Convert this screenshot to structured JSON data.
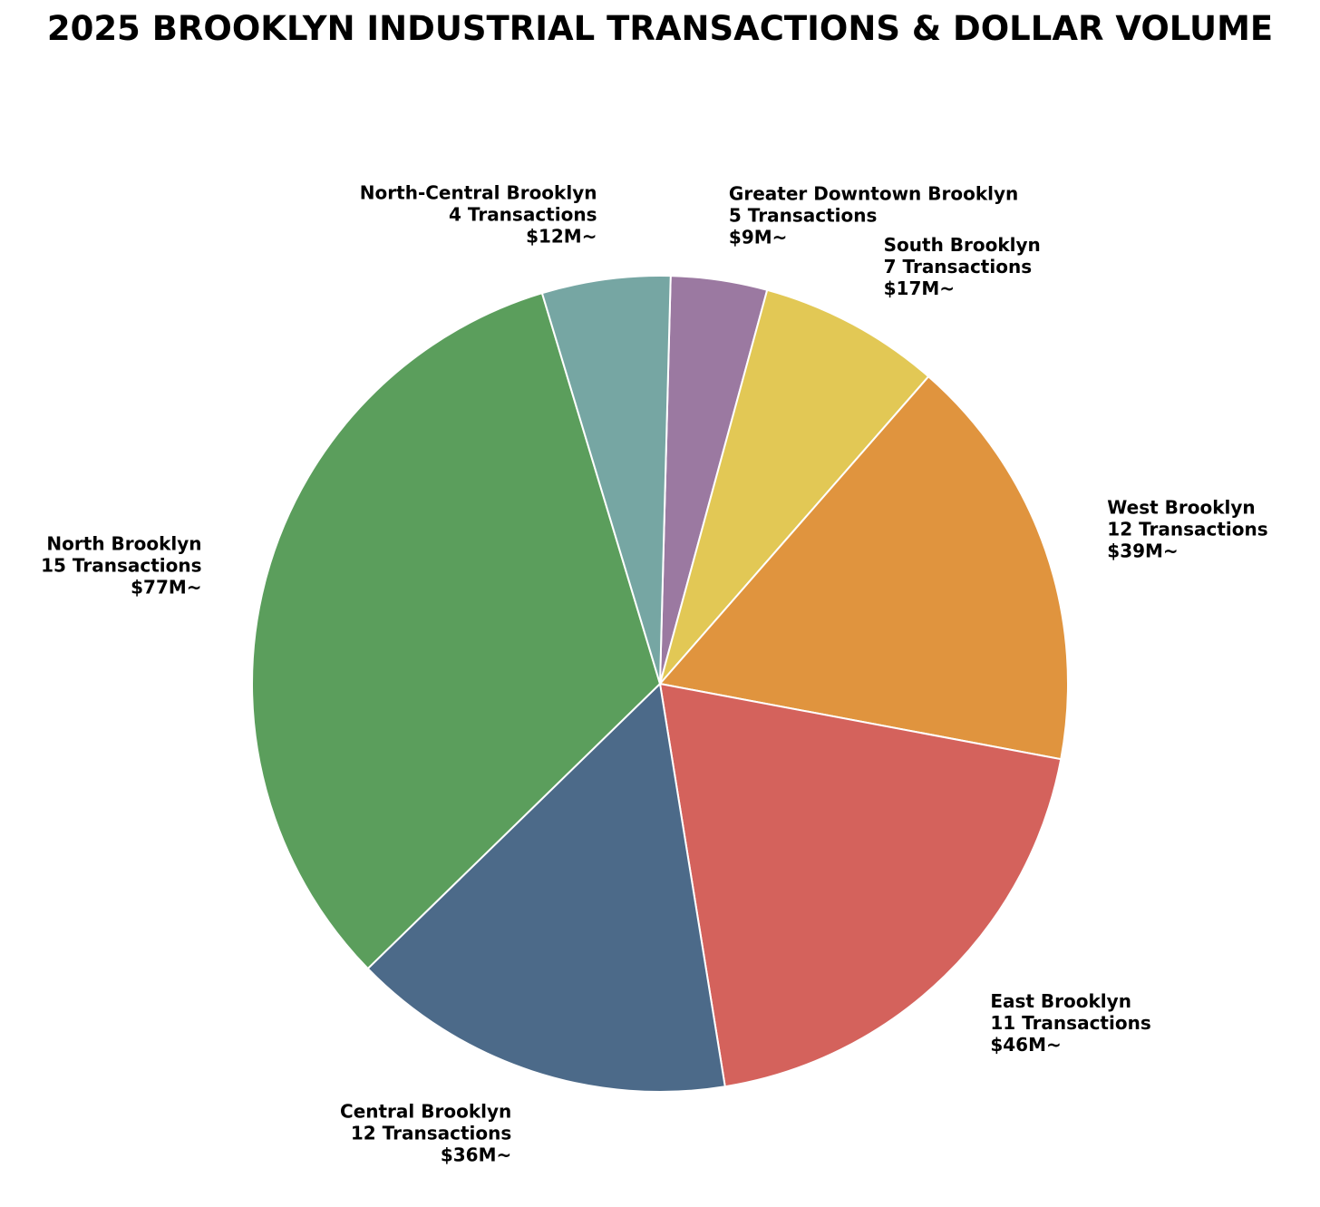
{
  "chart_data": {
    "type": "pie",
    "title": "2025 BROOKLYN INDUSTRIAL TRANSACTIONS & DOLLAR VOLUME",
    "slices": [
      {
        "region": "Greater Downtown Brooklyn",
        "transactions": "5 Transactions",
        "volume": "$9M~",
        "value": 9,
        "color": "#9b79a1"
      },
      {
        "region": "South Brooklyn",
        "transactions": "7 Transactions",
        "volume": "$17M~",
        "value": 17,
        "color": "#e2c855"
      },
      {
        "region": "West Brooklyn",
        "transactions": "12 Transactions",
        "volume": "$39M~",
        "value": 39,
        "color": "#e0943e"
      },
      {
        "region": "East Brooklyn",
        "transactions": "11 Transactions",
        "volume": "$46M~",
        "value": 46,
        "color": "#d4625c"
      },
      {
        "region": "Central Brooklyn",
        "transactions": "12 Transactions",
        "volume": "$36M~",
        "value": 36,
        "color": "#4c6a89"
      },
      {
        "region": "North Brooklyn",
        "transactions": "15 Transactions",
        "volume": "$77M~",
        "value": 77,
        "color": "#5b9e5c"
      },
      {
        "region": "North-Central Brooklyn",
        "transactions": "4 Transactions",
        "volume": "$12M~",
        "value": 12,
        "color": "#76a6a3"
      }
    ]
  }
}
